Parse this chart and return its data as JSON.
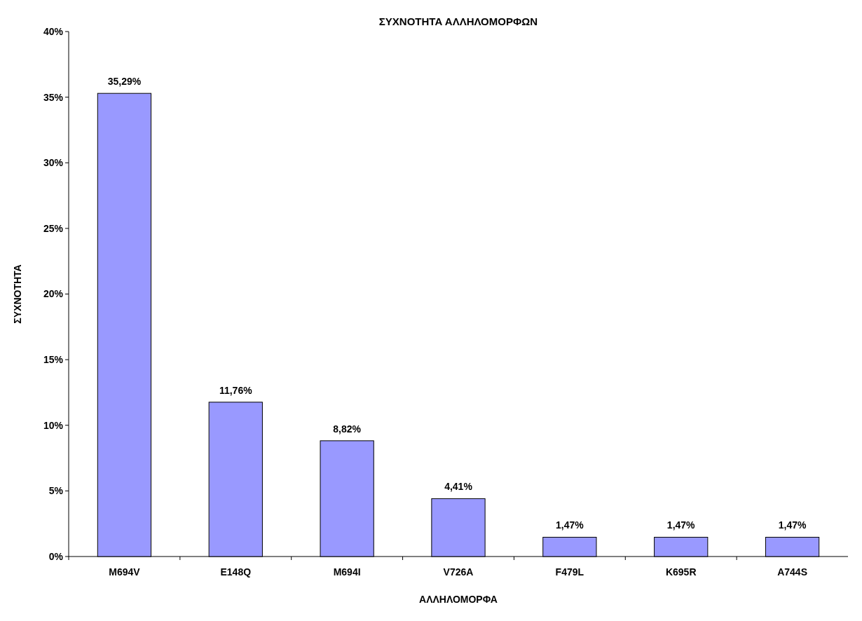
{
  "chart_data": {
    "type": "bar",
    "title": "ΣΥΧΝΟΤΗΤΑ ΑΛΛΗΛΟΜΟΡΦΩΝ",
    "xlabel": "ΑΛΛΗΛΟΜΟΡΦΑ",
    "ylabel": "ΣΥΧΝΟΤΗΤΑ",
    "categories": [
      "M694V",
      "E148Q",
      "M694I",
      "V726A",
      "F479L",
      "K695R",
      "A744S"
    ],
    "values": [
      35.29,
      11.76,
      8.82,
      4.41,
      1.47,
      1.47,
      1.47
    ],
    "value_labels": [
      "35,29%",
      "11,76%",
      "8,82%",
      "4,41%",
      "1,47%",
      "1,47%",
      "1,47%"
    ],
    "color": "#9999ff",
    "ylim": [
      0,
      40
    ],
    "yticks": [
      {
        "value": 0,
        "label": "0%"
      },
      {
        "value": 5,
        "label": "5%"
      },
      {
        "value": 10,
        "label": "10%"
      },
      {
        "value": 15,
        "label": "15%"
      },
      {
        "value": 20,
        "label": "20%"
      },
      {
        "value": 25,
        "label": "25%"
      },
      {
        "value": 30,
        "label": "30%"
      },
      {
        "value": 35,
        "label": "35%"
      },
      {
        "value": 40,
        "label": "40%"
      }
    ]
  }
}
